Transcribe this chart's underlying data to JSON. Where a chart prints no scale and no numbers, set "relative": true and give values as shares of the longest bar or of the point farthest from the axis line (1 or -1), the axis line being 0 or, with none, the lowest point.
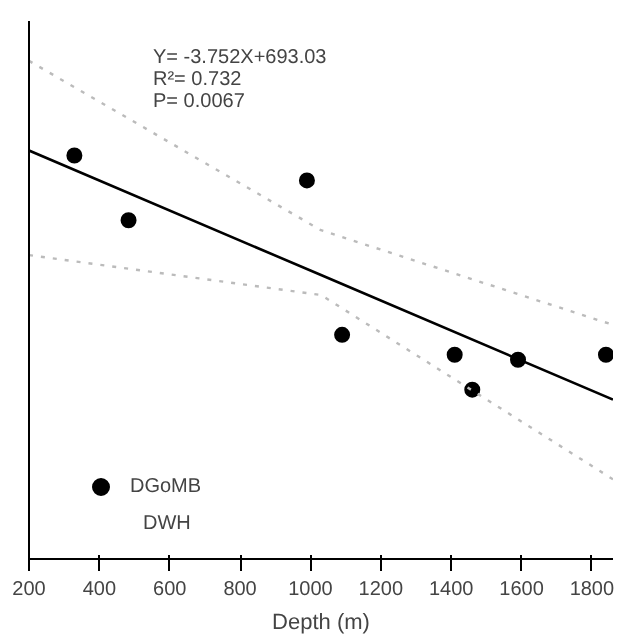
{
  "chart_data": {
    "type": "scatter",
    "xlabel": "Depth (m)",
    "relative": true,
    "xlim": [
      200,
      1860
    ],
    "xticks": [
      200,
      400,
      600,
      800,
      1000,
      1200,
      1400,
      1600,
      1800
    ],
    "legend": "bottom left",
    "grid": false,
    "marker": "circle",
    "annotations": [
      "Y=  -3.752X+693.03",
      "R²=  0.732",
      "P=  0.0067",
      "DWH"
    ],
    "series": [
      {
        "name": "DGoMB",
        "color": "#000000",
        "x": [
          329,
          483,
          990,
          1090,
          1410,
          1460,
          1590,
          1840
        ],
        "values": [
          0.81,
          0.68,
          0.76,
          0.45,
          0.41,
          0.34,
          0.4,
          0.41
        ]
      },
      {
        "type": "line",
        "marker": "none",
        "color": "#000000",
        "line_style": "solid",
        "x": [
          200,
          1030,
          1860
        ],
        "values": [
          0.82,
          0.57,
          0.32
        ]
      },
      {
        "type": "line",
        "color": "#bbbbbb",
        "line_style": "dotted",
        "x": [
          200,
          1030,
          1860
        ],
        "marker": "none",
        "values": [
          1.0,
          0.66,
          0.47
        ]
      },
      {
        "type": "line",
        "color": "#bbbbbb",
        "line_style": "dotted",
        "x": [
          200,
          1030,
          1860
        ],
        "marker": "none",
        "values": [
          0.61,
          0.53,
          0.16
        ]
      }
    ]
  }
}
